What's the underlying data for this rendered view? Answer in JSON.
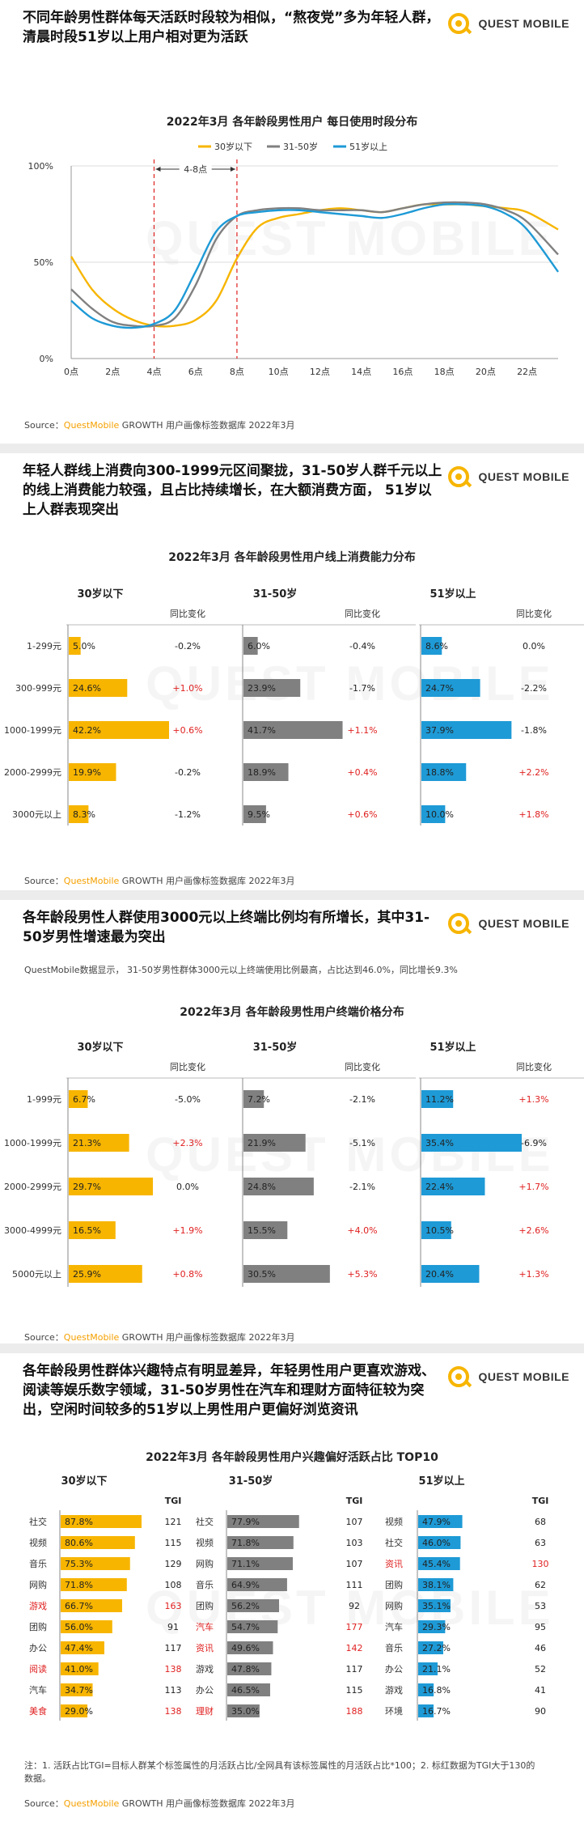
{
  "brand": {
    "logo_text": "QUEST MOBILE",
    "watermark": "QUEST MOBILE"
  },
  "colors": {
    "young": "#f7b500",
    "mid": "#808080",
    "old": "#1e9ad6",
    "up": "#e02020",
    "grid": "#dddddd"
  },
  "sections": [
    {
      "title": "不同年龄男性群体每天活跃时段较为相似，“熬夜党”多为年轻人群，清晨时段51岁以上用户相对更为活跃",
      "chart_title": "2022年3月 各年龄段男性用户 每日使用时段分布",
      "source_prefix": "Source：",
      "source_brand": "QuestMobile",
      "source_suffix": " GROWTH 用户画像标签数据库 2022年3月"
    },
    {
      "title": "年轻人群线上消费向300-1999元区间聚拢，31-50岁人群千元以上的线上消费能力较强，且占比持续增长，在大额消费方面， 51岁以上人群表现突出",
      "chart_title": "2022年3月 各年龄段男性用户线上消费能力分布",
      "source_prefix": "Source：",
      "source_brand": "QuestMobile",
      "source_suffix": " GROWTH 用户画像标签数据库 2022年3月"
    },
    {
      "title": "各年龄段男性人群使用3000元以上终端比例均有所增长，其中31-50岁男性增速最为突出",
      "subnote": "QuestMobile数据显示， 31-50岁男性群体3000元以上终端使用比例最高，占比达到46.0%，同比增长9.3%",
      "chart_title": "2022年3月 各年龄段男性用户终端价格分布",
      "source_prefix": "Source：",
      "source_brand": "QuestMobile",
      "source_suffix": " GROWTH 用户画像标签数据库 2022年3月"
    },
    {
      "title": "各年龄段男性群体兴趣特点有明显差异，年轻男性用户更喜欢游戏、阅读等娱乐数字领域，31-50岁男性在汽车和理财方面特征较为突出，空闲时间较多的51岁以上男性用户更偏好浏览资讯",
      "chart_title": "2022年3月 各年龄段男性用户兴趣偏好活跃占比 TOP10",
      "note": "注：1. 活跃占比TGI=目标人群某个标签属性的月活跃占比/全网具有该标签属性的月活跃占比*100；2. 标红数据为TGI大于130的数据。",
      "source_prefix": "Source：",
      "source_brand": "QuestMobile",
      "source_suffix": " GROWTH 用户画像标签数据库 2022年3月"
    }
  ],
  "chart_data": [
    {
      "type": "line",
      "title": "2022年3月 各年龄段男性用户 每日使用时段分布",
      "annotation": "4-8点",
      "x_ticks": [
        "0点",
        "2点",
        "4点",
        "6点",
        "8点",
        "10点",
        "12点",
        "14点",
        "16点",
        "18点",
        "20点",
        "22点"
      ],
      "y_ticks": [
        "0%",
        "50%",
        "100%"
      ],
      "ylim": [
        0,
        100
      ],
      "xlim": [
        0,
        23.5
      ],
      "series": [
        {
          "name": "30岁以下",
          "x": [
            0,
            1,
            2,
            3,
            4,
            5,
            6,
            7,
            8,
            9,
            10,
            11,
            12,
            13,
            14,
            15,
            16,
            17,
            18,
            19,
            20,
            21,
            22,
            23.5
          ],
          "y": [
            53,
            36,
            26,
            20,
            17,
            17,
            20,
            30,
            52,
            68,
            73,
            75,
            77,
            78,
            77,
            76,
            78,
            80,
            80,
            80,
            79,
            78,
            76,
            67
          ]
        },
        {
          "name": "31-50岁",
          "x": [
            0,
            1,
            2,
            3,
            4,
            5,
            6,
            7,
            8,
            9,
            10,
            11,
            12,
            13,
            14,
            15,
            16,
            17,
            18,
            19,
            20,
            21,
            22,
            23.5
          ],
          "y": [
            36,
            26,
            19,
            17,
            17,
            21,
            38,
            62,
            74,
            77,
            78,
            78,
            77,
            77,
            77,
            76,
            78,
            80,
            81,
            81,
            80,
            77,
            71,
            54
          ]
        },
        {
          "name": "51岁以上",
          "x": [
            0,
            1,
            2,
            3,
            4,
            5,
            6,
            7,
            8,
            9,
            10,
            11,
            12,
            13,
            14,
            15,
            16,
            17,
            18,
            19,
            20,
            21,
            22,
            23.5
          ],
          "y": [
            30,
            21,
            17,
            16,
            18,
            25,
            45,
            66,
            74,
            76,
            77,
            77,
            76,
            75,
            74,
            73,
            75,
            78,
            80,
            80,
            79,
            75,
            67,
            45
          ]
        }
      ]
    },
    {
      "type": "bar",
      "title": "2022年3月 各年龄段男性用户线上消费能力分布",
      "categories": [
        "1-299元",
        "300-999元",
        "1000-1999元",
        "2000-2999元",
        "3000元以上"
      ],
      "change_header": "同比变化",
      "xlim": [
        0,
        42.2
      ],
      "groups": [
        {
          "name": "30岁以下",
          "values": [
            5.0,
            24.6,
            42.2,
            19.9,
            8.3
          ],
          "labels": [
            "5.0%",
            "24.6%",
            "42.2%",
            "19.9%",
            "8.3%"
          ],
          "changes": [
            "-0.2%",
            "+1.0%",
            "+0.6%",
            "-0.2%",
            "-1.2%"
          ]
        },
        {
          "name": "31-50岁",
          "values": [
            6.0,
            23.9,
            41.7,
            18.9,
            9.5
          ],
          "labels": [
            "6.0%",
            "23.9%",
            "41.7%",
            "18.9%",
            "9.5%"
          ],
          "changes": [
            "-0.4%",
            "-1.7%",
            "+1.1%",
            "+0.4%",
            "+0.6%"
          ]
        },
        {
          "name": "51岁以上",
          "values": [
            8.6,
            24.7,
            37.9,
            18.8,
            10.0
          ],
          "labels": [
            "8.6%",
            "24.7%",
            "37.9%",
            "18.8%",
            "10.0%"
          ],
          "changes": [
            "0.0%",
            "-2.2%",
            "-1.8%",
            "+2.2%",
            "+1.8%"
          ]
        }
      ]
    },
    {
      "type": "bar",
      "title": "2022年3月 各年龄段男性用户终端价格分布",
      "categories": [
        "1-999元",
        "1000-1999元",
        "2000-2999元",
        "3000-4999元",
        "5000元以上"
      ],
      "change_header": "同比变化",
      "xlim": [
        0,
        35.4
      ],
      "groups": [
        {
          "name": "30岁以下",
          "values": [
            6.7,
            21.3,
            29.7,
            16.5,
            25.9
          ],
          "labels": [
            "6.7%",
            "21.3%",
            "29.7%",
            "16.5%",
            "25.9%"
          ],
          "changes": [
            "-5.0%",
            "+2.3%",
            "0.0%",
            "+1.9%",
            "+0.8%"
          ]
        },
        {
          "name": "31-50岁",
          "values": [
            7.2,
            21.9,
            24.8,
            15.5,
            30.5
          ],
          "labels": [
            "7.2%",
            "21.9%",
            "24.8%",
            "15.5%",
            "30.5%"
          ],
          "changes": [
            "-2.1%",
            "-5.1%",
            "-2.1%",
            "+4.0%",
            "+5.3%"
          ]
        },
        {
          "name": "51岁以上",
          "values": [
            11.2,
            35.4,
            22.4,
            10.5,
            20.4
          ],
          "labels": [
            "11.2%",
            "35.4%",
            "22.4%",
            "10.5%",
            "20.4%"
          ],
          "changes": [
            "+1.3%",
            "-6.9%",
            "+1.7%",
            "+2.6%",
            "+1.3%"
          ]
        }
      ]
    },
    {
      "type": "bar",
      "title": "2022年3月 各年龄段男性用户兴趣偏好活跃占比 TOP10",
      "tgi_header": "TGI",
      "xlim": [
        0,
        87.8
      ],
      "groups": [
        {
          "name": "30岁以下",
          "categories": [
            "社交",
            "视频",
            "音乐",
            "网购",
            "游戏",
            "团购",
            "办公",
            "阅读",
            "汽车",
            "美食"
          ],
          "values": [
            87.8,
            80.6,
            75.3,
            71.8,
            66.7,
            56.0,
            47.4,
            41.0,
            34.7,
            29.0
          ],
          "labels": [
            "87.8%",
            "80.6%",
            "75.3%",
            "71.8%",
            "66.7%",
            "56.0%",
            "47.4%",
            "41.0%",
            "34.7%",
            "29.0%"
          ],
          "tgi": [
            "121",
            "115",
            "129",
            "108",
            "163",
            "91",
            "117",
            "138",
            "113",
            "138"
          ],
          "red": [
            false,
            false,
            false,
            false,
            true,
            false,
            false,
            true,
            false,
            true
          ]
        },
        {
          "name": "31-50岁",
          "categories": [
            "社交",
            "视频",
            "网购",
            "音乐",
            "团购",
            "汽车",
            "资讯",
            "游戏",
            "办公",
            "理财"
          ],
          "values": [
            77.9,
            71.8,
            71.1,
            64.9,
            56.2,
            54.7,
            49.6,
            47.8,
            46.5,
            35.0
          ],
          "labels": [
            "77.9%",
            "71.8%",
            "71.1%",
            "64.9%",
            "56.2%",
            "54.7%",
            "49.6%",
            "47.8%",
            "46.5%",
            "35.0%"
          ],
          "tgi": [
            "107",
            "103",
            "107",
            "111",
            "92",
            "177",
            "142",
            "117",
            "115",
            "188"
          ],
          "red": [
            false,
            false,
            false,
            false,
            false,
            true,
            true,
            false,
            false,
            true
          ]
        },
        {
          "name": "51岁以上",
          "categories": [
            "视频",
            "社交",
            "资讯",
            "团购",
            "网购",
            "汽车",
            "音乐",
            "办公",
            "游戏",
            "环境"
          ],
          "values": [
            47.9,
            46.0,
            45.4,
            38.1,
            35.1,
            29.3,
            27.2,
            21.1,
            16.8,
            16.7
          ],
          "labels": [
            "47.9%",
            "46.0%",
            "45.4%",
            "38.1%",
            "35.1%",
            "29.3%",
            "27.2%",
            "21.1%",
            "16.8%",
            "16.7%"
          ],
          "tgi": [
            "68",
            "63",
            "130",
            "62",
            "53",
            "95",
            "46",
            "52",
            "41",
            "90"
          ],
          "red": [
            false,
            false,
            true,
            false,
            false,
            false,
            false,
            false,
            false,
            false
          ]
        }
      ]
    }
  ]
}
